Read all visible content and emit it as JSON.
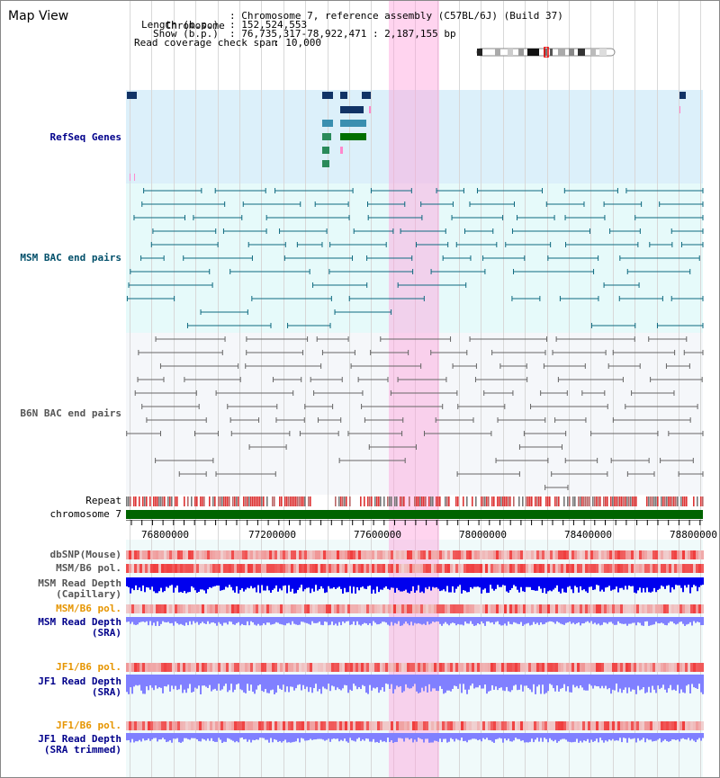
{
  "page": {
    "title": "Map View",
    "info": {
      "chromosome_label": "Chromosome",
      "chromosome_value": ": Chromosome 7, reference assembly (C57BL/6J) (Build 37)",
      "length_label": "Length (b.p.)",
      "length_value": ": 152,524,553",
      "show_label": "Show (b.p.)",
      "show_value": ": 76,735,317-78,922,471 : 2,187,155 bp",
      "coverage_label": "Read coverage check span",
      "coverage_value": ": 10,000"
    }
  },
  "tracks": {
    "refseq": "RefSeq Genes",
    "msm_bac": "MSM BAC end pairs",
    "b6n_bac": "B6N BAC end pairs",
    "repeat": "Repeat",
    "chromosome": "chromosome 7",
    "dbsnp": "dbSNP(Mouse)",
    "msm_b6_pol_1": "MSM/B6 pol.",
    "msm_read_depth_cap_1": "MSM Read Depth",
    "msm_read_depth_cap_2": "(Capillary)",
    "msm_b6_pol_2": "MSM/B6 pol.",
    "msm_read_depth_sra_1": "MSM Read Depth",
    "msm_read_depth_sra_2": "(SRA)",
    "jf1_b6_pol_1": "JF1/B6 pol.",
    "jf1_read_depth_sra_1": "JF1 Read Depth",
    "jf1_read_depth_sra_2": "(SRA)",
    "jf1_b6_pol_2": "JF1/B6 pol.",
    "jf1_read_depth_trim_1": "JF1 Read Depth",
    "jf1_read_depth_trim_2": "(SRA trimmed)"
  },
  "axis": {
    "ticks": [
      "76800000",
      "77200000",
      "77600000",
      "78000000",
      "78400000",
      "78800000"
    ]
  },
  "colors": {
    "refseq_bg": "#dcf0fa",
    "msm_bg": "#e6fafa",
    "b6n_bg": "#f5f7fa",
    "highlight": "#ffc8eb",
    "chromosome_bar": "#006400",
    "read_depth_dark": "#0000ee",
    "read_depth_light": "#8080ff",
    "pol_red": "#f05050"
  }
}
